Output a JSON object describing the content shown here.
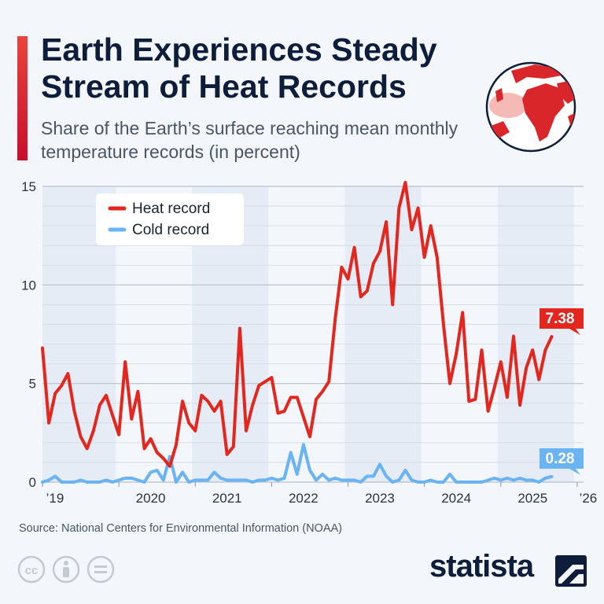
{
  "header": {
    "title": "Earth Experiences Steady Stream of Heat Records",
    "subtitle": "Share of the Earth’s surface reaching mean monthly temperature records (in percent)"
  },
  "footer": {
    "source": "Source: National Centers for Environmental Information (NOAA)",
    "brand": "statista",
    "license_icons": [
      "cc-icon",
      "person-icon",
      "equals-icon"
    ]
  },
  "colors": {
    "heat": "#e3261e",
    "cold": "#6ab4f3",
    "band": "#e6ecf5",
    "grid": "#d2d8e0",
    "brand": "#0e1e3a"
  },
  "chart_data": {
    "type": "line",
    "ylim": [
      0,
      15
    ],
    "yticks": [
      0,
      5,
      10,
      15
    ],
    "grid": true,
    "legend": "top-left",
    "x_start": "2019-01",
    "x_end": "2026-02",
    "x_tick_labels": [
      {
        "label": "’19",
        "date": "2019-01"
      },
      {
        "label": "2020",
        "date": "2020-01"
      },
      {
        "label": "2021",
        "date": "2021-01"
      },
      {
        "label": "2022",
        "date": "2022-01"
      },
      {
        "label": "2023",
        "date": "2023-01"
      },
      {
        "label": "2024",
        "date": "2024-01"
      },
      {
        "label": "2025",
        "date": "2025-01"
      },
      {
        "label": "’26",
        "date": "2026-01"
      }
    ],
    "shaded_years": [
      "2019",
      "2021",
      "2023",
      "2025"
    ],
    "series": [
      {
        "name": "Heat record",
        "color": "#e3261e",
        "end_label": "7.38",
        "values": [
          6.8,
          3.0,
          4.5,
          4.9,
          5.5,
          3.6,
          2.3,
          1.7,
          2.6,
          3.9,
          4.4,
          3.4,
          2.4,
          6.1,
          3.2,
          4.6,
          1.7,
          2.2,
          1.5,
          1.2,
          0.8,
          1.9,
          4.1,
          3.0,
          2.6,
          4.4,
          4.1,
          3.6,
          4.1,
          1.4,
          1.8,
          7.8,
          2.6,
          3.9,
          4.9,
          5.1,
          5.3,
          3.5,
          3.6,
          4.3,
          4.3,
          3.3,
          2.3,
          4.2,
          4.6,
          5.1,
          8.3,
          10.9,
          10.3,
          11.9,
          9.4,
          9.7,
          11.1,
          11.7,
          13.2,
          9.0,
          13.9,
          15.2,
          12.8,
          13.9,
          11.4,
          13.0,
          11.4,
          8.0,
          5.0,
          6.5,
          8.6,
          4.1,
          4.2,
          6.7,
          3.6,
          4.8,
          6.1,
          4.3,
          7.4,
          3.9,
          5.8,
          6.7,
          5.2,
          6.7,
          7.38
        ]
      },
      {
        "name": "Cold record",
        "color": "#6ab4f3",
        "end_label": "0.28",
        "values": [
          0.0,
          0.1,
          0.3,
          0.0,
          0.0,
          0.0,
          0.1,
          0.0,
          0.0,
          0.0,
          0.1,
          0.0,
          0.1,
          0.2,
          0.2,
          0.1,
          0.0,
          0.5,
          0.6,
          0.1,
          1.3,
          0.0,
          0.5,
          0.0,
          0.1,
          0.1,
          0.1,
          0.5,
          0.2,
          0.1,
          0.1,
          0.1,
          0.1,
          0.0,
          0.1,
          0.1,
          0.2,
          0.1,
          0.2,
          1.5,
          0.4,
          1.9,
          0.6,
          0.1,
          0.4,
          0.1,
          0.2,
          0.1,
          0.1,
          0.1,
          0.0,
          0.3,
          0.3,
          0.9,
          0.3,
          0.0,
          0.1,
          0.6,
          0.1,
          0.0,
          0.0,
          0.1,
          0.0,
          0.0,
          0.4,
          0.0,
          0.0,
          0.0,
          0.0,
          0.0,
          0.1,
          0.2,
          0.1,
          0.2,
          0.1,
          0.2,
          0.1,
          0.1,
          0.0,
          0.2,
          0.28
        ]
      }
    ]
  }
}
